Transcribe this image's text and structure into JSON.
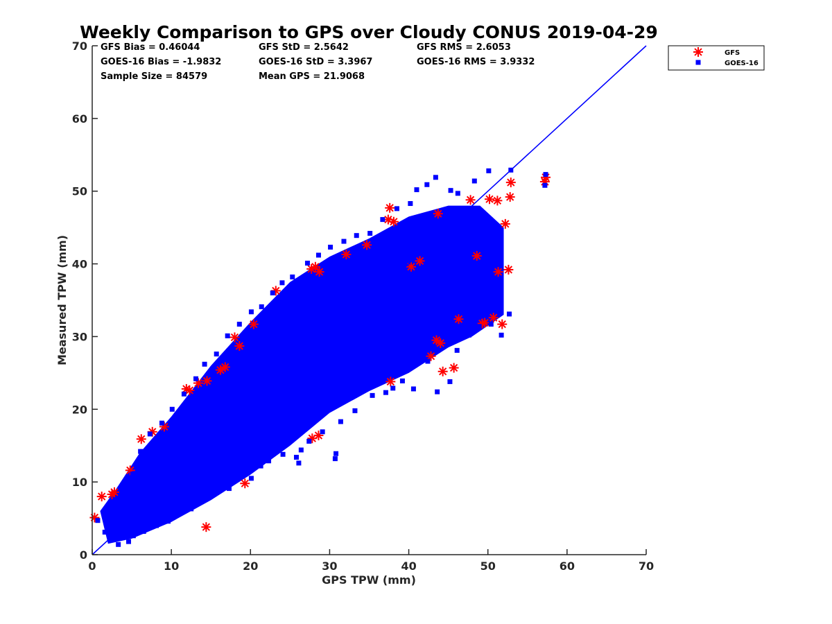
{
  "chart_data": {
    "type": "scatter",
    "title": "Weekly Comparison to GPS over Cloudy CONUS 2019-04-29",
    "xlabel": "GPS TPW (mm)",
    "ylabel": "Measured TPW (mm)",
    "xlim": [
      0,
      70
    ],
    "ylim": [
      0,
      70
    ],
    "xticks": [
      "0",
      "10",
      "20",
      "30",
      "40",
      "50",
      "60",
      "70"
    ],
    "yticks": [
      "0",
      "10",
      "20",
      "30",
      "40",
      "50",
      "60",
      "70"
    ],
    "grid": false,
    "legend_position": "outside-top-right",
    "stats": [
      [
        "GFS Bias = 0.46044",
        "GFS StD = 2.5642",
        "GFS RMS = 2.6053"
      ],
      [
        "GOES-16 Bias = -1.9832",
        "GOES-16 StD = 3.3967",
        "GOES-16 RMS = 3.9332"
      ],
      [
        "Sample Size = 84579",
        "Mean GPS = 21.9068"
      ]
    ],
    "reference_line": {
      "x": [
        0,
        70
      ],
      "y": [
        0,
        70
      ],
      "color": "#0000ff"
    },
    "series": [
      {
        "name": "GFS",
        "marker": "asterisk",
        "color": "#ff0000",
        "points": [
          [
            0.3,
            5.1
          ],
          [
            1.2,
            8.0
          ],
          [
            2.5,
            8.3
          ],
          [
            2.8,
            8.6
          ],
          [
            4.8,
            11.6
          ],
          [
            6.2,
            15.9
          ],
          [
            7.6,
            16.9
          ],
          [
            9.1,
            17.6
          ],
          [
            11.9,
            22.8
          ],
          [
            12.3,
            22.6
          ],
          [
            13.4,
            23.6
          ],
          [
            14.5,
            23.9
          ],
          [
            16.2,
            25.4
          ],
          [
            16.8,
            25.8
          ],
          [
            18.0,
            29.9
          ],
          [
            18.6,
            28.7
          ],
          [
            19.3,
            9.8
          ],
          [
            20.4,
            31.7
          ],
          [
            23.2,
            36.3
          ],
          [
            27.7,
            39.3
          ],
          [
            28.2,
            39.6
          ],
          [
            28.7,
            38.9
          ],
          [
            32.1,
            41.3
          ],
          [
            34.7,
            42.6
          ],
          [
            37.4,
            46.1
          ],
          [
            37.6,
            47.7
          ],
          [
            38.1,
            45.8
          ],
          [
            40.3,
            39.6
          ],
          [
            41.4,
            40.4
          ],
          [
            43.7,
            46.9
          ],
          [
            44.3,
            25.2
          ],
          [
            45.7,
            25.7
          ],
          [
            46.3,
            32.4
          ],
          [
            47.8,
            48.8
          ],
          [
            48.6,
            41.1
          ],
          [
            49.3,
            31.8
          ],
          [
            49.6,
            31.9
          ],
          [
            50.2,
            48.9
          ],
          [
            50.7,
            32.6
          ],
          [
            51.2,
            48.7
          ],
          [
            51.3,
            38.9
          ],
          [
            51.8,
            31.7
          ],
          [
            52.2,
            45.5
          ],
          [
            52.6,
            39.2
          ],
          [
            52.8,
            49.2
          ],
          [
            52.9,
            51.2
          ],
          [
            57.2,
            51.3
          ],
          [
            57.3,
            51.9
          ],
          [
            27.8,
            16.0
          ],
          [
            28.6,
            16.4
          ],
          [
            14.4,
            3.8
          ],
          [
            37.7,
            23.8
          ],
          [
            42.8,
            27.3
          ],
          [
            43.5,
            29.5
          ],
          [
            44.0,
            29.1
          ]
        ]
      },
      {
        "name": "GOES-16",
        "marker": "square",
        "color": "#0000ff",
        "points": [
          [
            0.7,
            4.7
          ],
          [
            1.6,
            3.1
          ],
          [
            2.4,
            2.2
          ],
          [
            3.3,
            1.4
          ],
          [
            4.6,
            1.8
          ],
          [
            5.2,
            2.6
          ],
          [
            6.5,
            3.2
          ],
          [
            8.1,
            4.0
          ],
          [
            9.6,
            4.6
          ],
          [
            10.7,
            5.9
          ],
          [
            12.5,
            6.3
          ],
          [
            14.1,
            7.8
          ],
          [
            15.2,
            9.4
          ],
          [
            17.3,
            9.1
          ],
          [
            18.9,
            11.0
          ],
          [
            20.1,
            10.5
          ],
          [
            22.3,
            12.9
          ],
          [
            24.1,
            13.8
          ],
          [
            26.4,
            14.4
          ],
          [
            27.4,
            15.6
          ],
          [
            29.1,
            16.9
          ],
          [
            31.4,
            18.3
          ],
          [
            33.2,
            19.8
          ],
          [
            35.4,
            21.9
          ],
          [
            37.1,
            22.3
          ],
          [
            38.0,
            22.9
          ],
          [
            39.2,
            23.9
          ],
          [
            40.6,
            22.8
          ],
          [
            42.4,
            26.6
          ],
          [
            43.6,
            22.4
          ],
          [
            45.2,
            23.8
          ],
          [
            46.1,
            28.1
          ],
          [
            47.6,
            30.2
          ],
          [
            48.9,
            31.4
          ],
          [
            50.4,
            31.7
          ],
          [
            51.7,
            30.2
          ],
          [
            52.7,
            33.1
          ],
          [
            52.9,
            52.9
          ],
          [
            50.1,
            52.8
          ],
          [
            48.3,
            51.4
          ],
          [
            46.2,
            49.7
          ],
          [
            45.3,
            50.1
          ],
          [
            43.4,
            51.9
          ],
          [
            42.3,
            50.9
          ],
          [
            41.0,
            50.2
          ],
          [
            40.2,
            48.3
          ],
          [
            38.5,
            47.6
          ],
          [
            36.7,
            46.1
          ],
          [
            35.1,
            44.2
          ],
          [
            33.4,
            43.9
          ],
          [
            31.8,
            43.1
          ],
          [
            30.1,
            42.3
          ],
          [
            28.6,
            41.2
          ],
          [
            27.2,
            40.1
          ],
          [
            25.3,
            38.2
          ],
          [
            24.0,
            37.4
          ],
          [
            22.8,
            36.0
          ],
          [
            21.4,
            34.1
          ],
          [
            20.1,
            33.4
          ],
          [
            18.6,
            31.7
          ],
          [
            17.1,
            30.1
          ],
          [
            15.7,
            27.6
          ],
          [
            14.2,
            26.2
          ],
          [
            13.1,
            24.2
          ],
          [
            11.6,
            22.1
          ],
          [
            10.1,
            20.0
          ],
          [
            8.8,
            18.1
          ],
          [
            7.3,
            16.6
          ],
          [
            6.1,
            14.2
          ],
          [
            5.1,
            11.1
          ],
          [
            4.2,
            9.3
          ],
          [
            3.1,
            7.6
          ],
          [
            57.2,
            50.8
          ],
          [
            57.3,
            52.3
          ],
          [
            25.8,
            13.4
          ],
          [
            30.8,
            13.9
          ],
          [
            30.7,
            13.2
          ],
          [
            21.3,
            12.2
          ],
          [
            26.1,
            12.6
          ]
        ]
      }
    ]
  }
}
